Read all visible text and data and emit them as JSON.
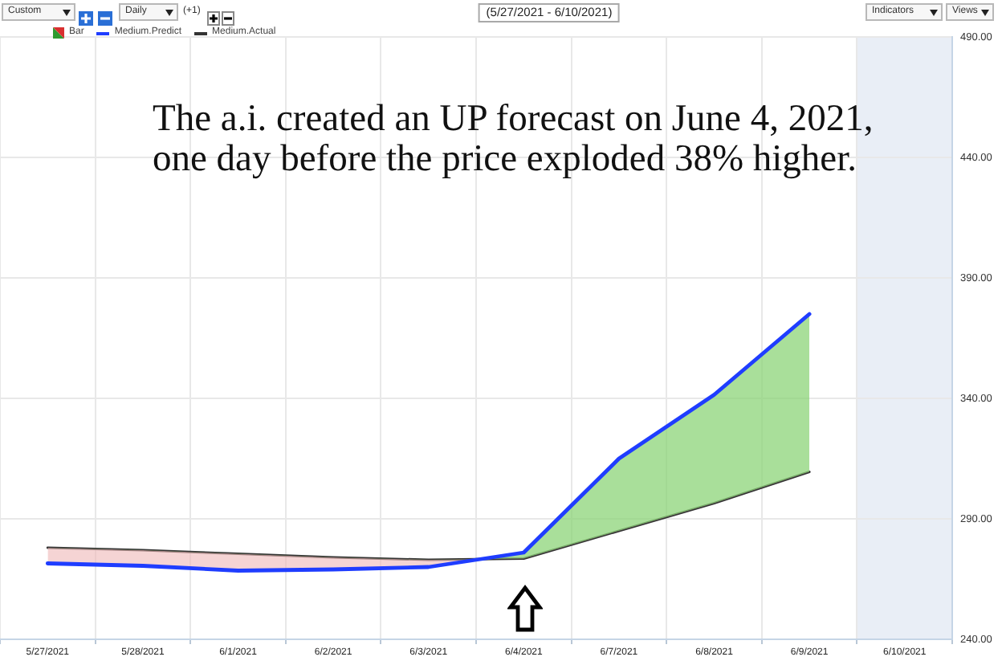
{
  "chart_data": {
    "type": "line",
    "title": "(5/27/2021 - 6/10/2021)",
    "categories": [
      "5/27/2021",
      "5/28/2021",
      "6/1/2021",
      "6/2/2021",
      "6/3/2021",
      "6/4/2021",
      "6/7/2021",
      "6/8/2021",
      "6/9/2021",
      "6/10/2021"
    ],
    "series": [
      {
        "name": "Medium.Predict",
        "color": "#1f3dff",
        "values": [
          271.5,
          270.5,
          268.5,
          269,
          270,
          276,
          315,
          341.5,
          375,
          null
        ]
      },
      {
        "name": "Medium.Actual",
        "color": "#333333",
        "values": [
          278,
          277,
          275.5,
          274,
          273,
          273.5,
          285,
          296.5,
          309.5,
          null
        ]
      }
    ],
    "ylim": [
      240,
      490
    ],
    "yticks": [
      {
        "value": 240,
        "label": "240.00"
      },
      {
        "value": 290,
        "label": "290.00"
      },
      {
        "value": 340,
        "label": "340.00"
      },
      {
        "value": 390,
        "label": "390.00"
      },
      {
        "value": 440,
        "label": "440.00"
      },
      {
        "value": 490,
        "label": "490.00"
      }
    ],
    "grid": true,
    "legend": "top left",
    "marker": "none",
    "bands": [
      {
        "axis": "x",
        "from": "6/10/2021",
        "to": "6/10/2021",
        "color": "#e9eef6"
      }
    ],
    "annotations": [
      "Custom",
      "Daily",
      "(+1)",
      "Indicators",
      "Views",
      "Bar",
      "The a.i. created an UP forecast on June 4, 2021, one day before the price exploded 38% higher."
    ]
  }
}
